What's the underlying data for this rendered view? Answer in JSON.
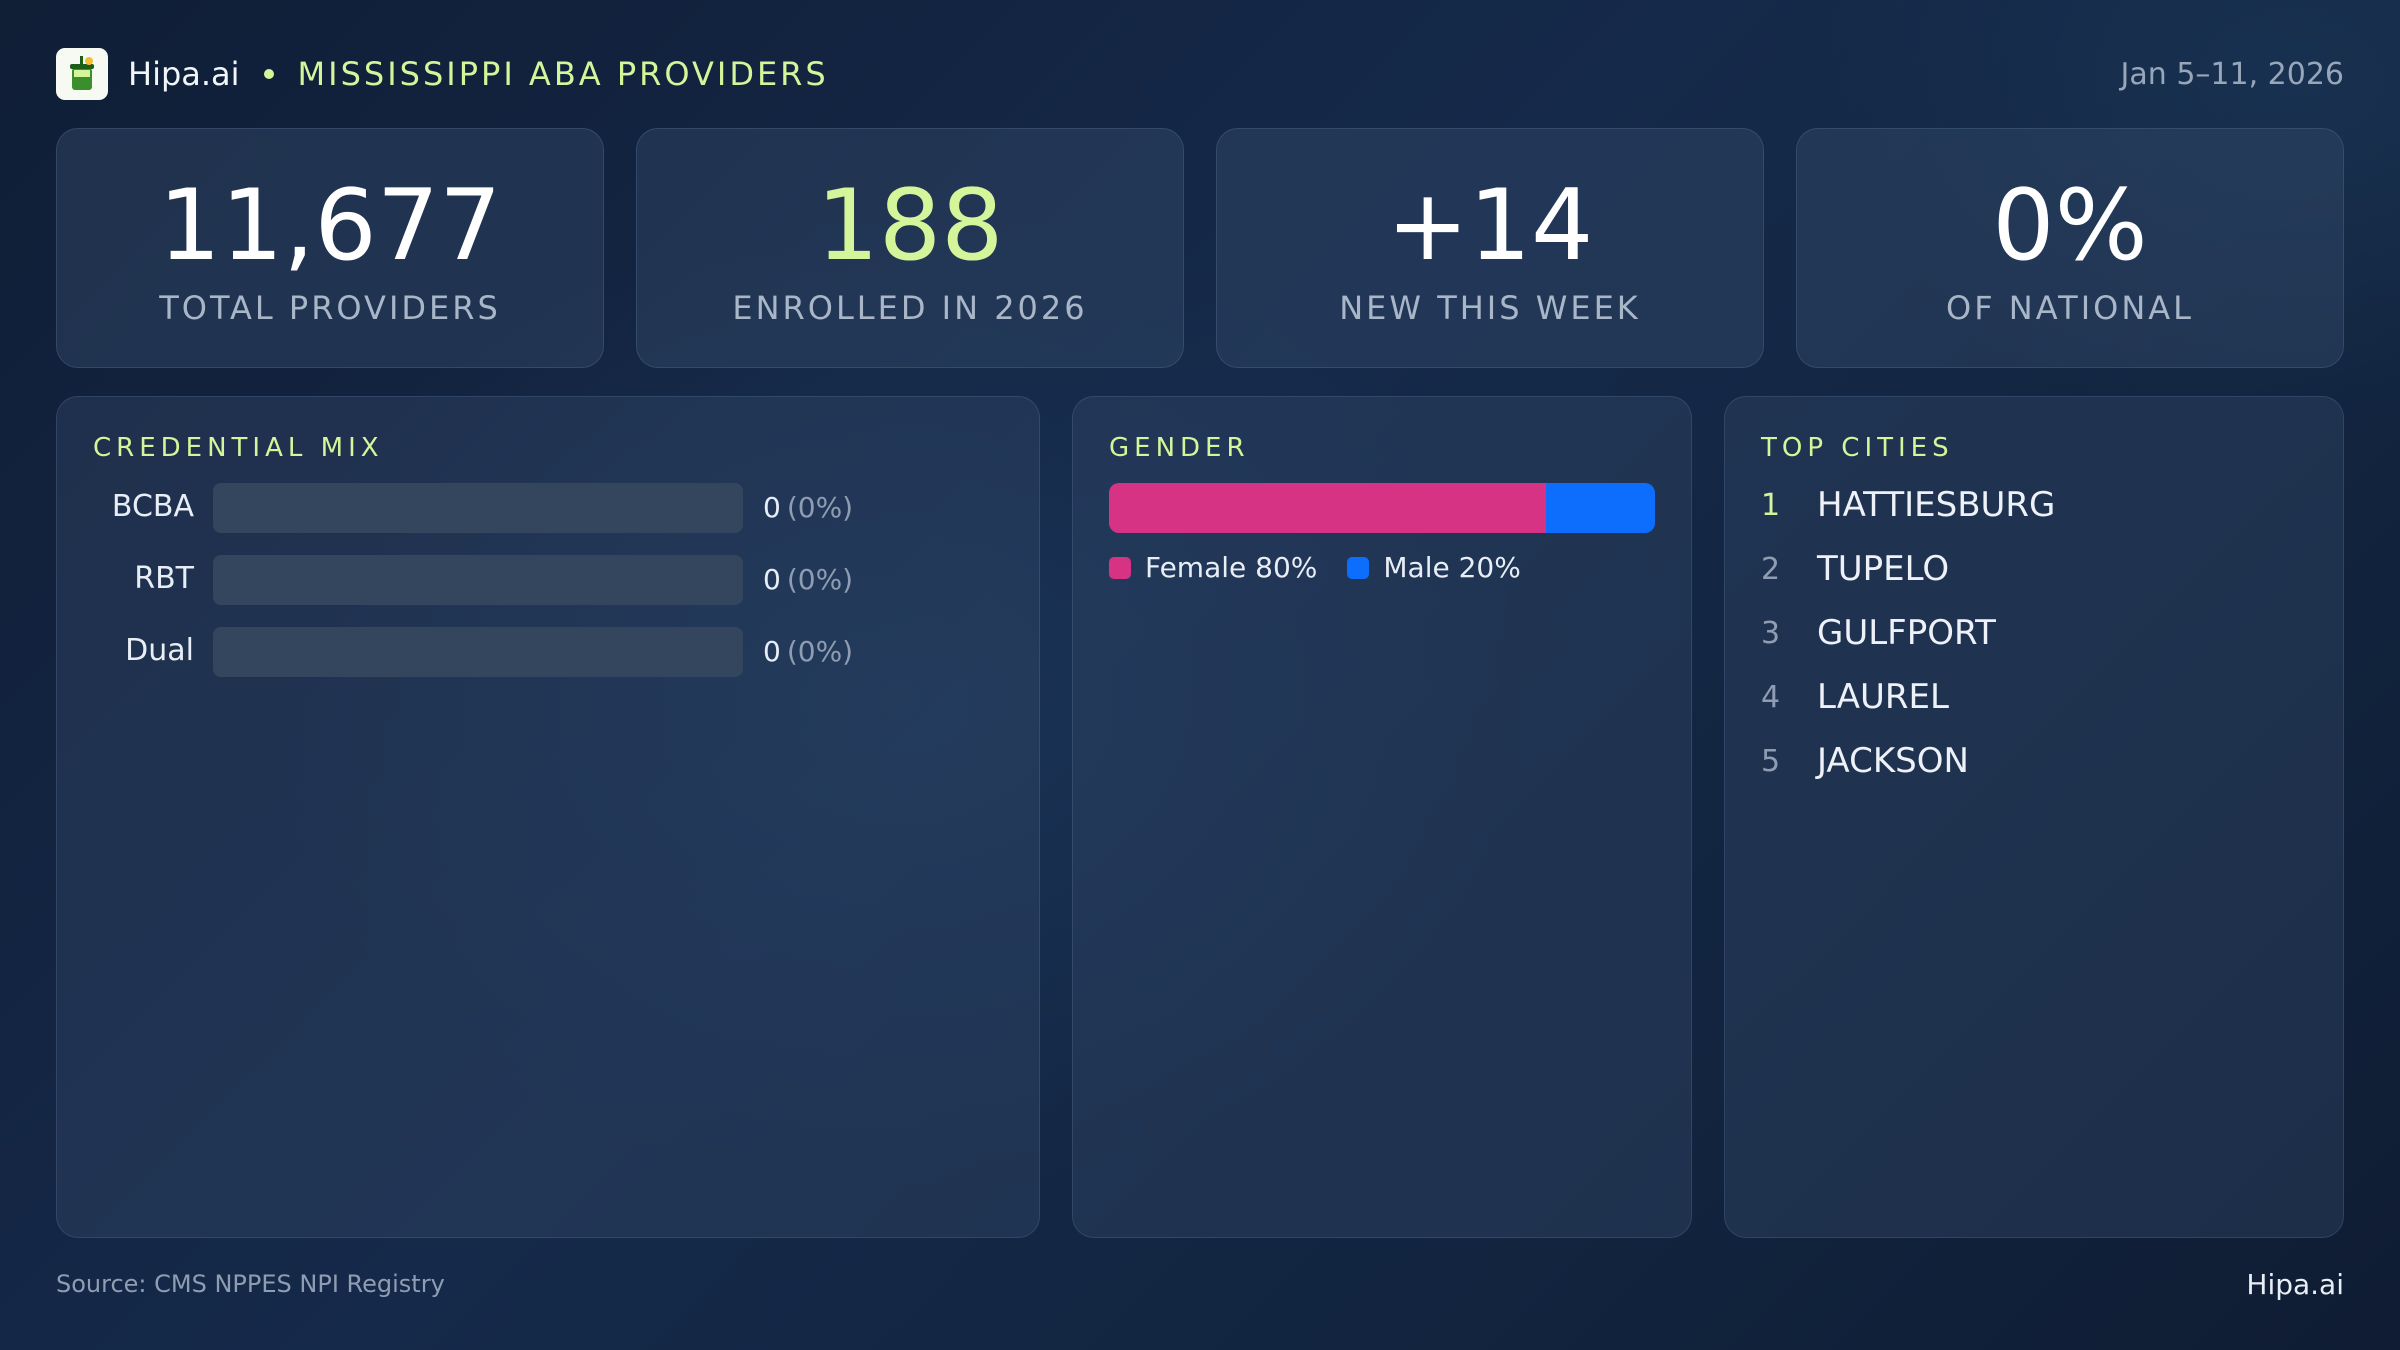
{
  "header": {
    "brand": "Hipa.ai",
    "title": "MISSISSIPPI ABA PROVIDERS",
    "date_range": "Jan 5–11, 2026",
    "logo_icon": "drink-cup-icon"
  },
  "kpis": [
    {
      "value": "11,677",
      "label": "TOTAL PROVIDERS",
      "accent": false
    },
    {
      "value": "188",
      "label": "ENROLLED IN 2026",
      "accent": true
    },
    {
      "value": "+14",
      "label": "NEW THIS WEEK",
      "accent": false
    },
    {
      "value": "0%",
      "label": "OF NATIONAL",
      "accent": false
    }
  ],
  "credential_mix": {
    "title": "CREDENTIAL MIX",
    "rows": [
      {
        "label": "BCBA",
        "count": "0",
        "pct": "(0%)",
        "fraction": 0
      },
      {
        "label": "RBT",
        "count": "0",
        "pct": "(0%)",
        "fraction": 0
      },
      {
        "label": "Dual",
        "count": "0",
        "pct": "(0%)",
        "fraction": 0
      }
    ]
  },
  "gender": {
    "title": "GENDER",
    "female_label": "Female 80%",
    "male_label": "Male 20%",
    "female_fraction": 0.8,
    "male_fraction": 0.2,
    "female_color": "#d63384",
    "male_color": "#0d6efd"
  },
  "top_cities": {
    "title": "TOP CITIES",
    "items": [
      {
        "rank": "1",
        "name": "HATTIESBURG"
      },
      {
        "rank": "2",
        "name": "TUPELO"
      },
      {
        "rank": "3",
        "name": "GULFPORT"
      },
      {
        "rank": "4",
        "name": "LAUREL"
      },
      {
        "rank": "5",
        "name": "JACKSON"
      }
    ]
  },
  "footer": {
    "source": "Source: CMS NPPES NPI Registry",
    "brand": "Hipa.ai"
  },
  "colors": {
    "accent": "#d4f59a",
    "background": "#13243f"
  }
}
